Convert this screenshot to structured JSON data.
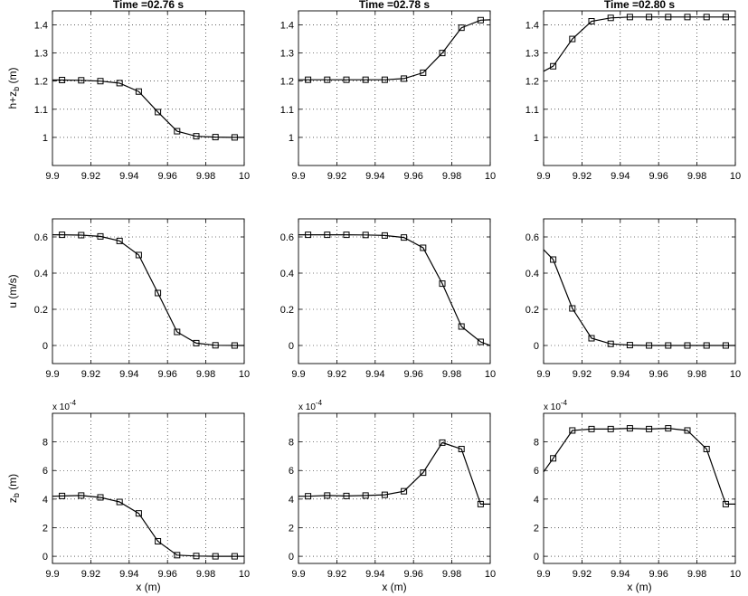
{
  "chart_data": [
    {
      "type": "line",
      "row": 0,
      "col": 0,
      "title": "Time =02.76 s",
      "ylabel": "h+z_b (m)",
      "xlabel": "",
      "xlim": [
        9.9,
        10
      ],
      "ylim": [
        0.9,
        1.45
      ],
      "xticks": [
        9.9,
        9.92,
        9.94,
        9.96,
        9.98,
        10
      ],
      "xtick_labels": [
        "9.9",
        "9.92",
        "9.94",
        "9.96",
        "9.98",
        "10"
      ],
      "yticks": [
        1,
        1.1,
        1.2,
        1.3,
        1.4
      ],
      "ytick_labels": [
        "1",
        "1.1",
        "1.2",
        "1.3",
        "1.4"
      ],
      "grid": true,
      "line_x": [
        9.9,
        9.905,
        9.915,
        9.925,
        9.935,
        9.945,
        9.955,
        9.965,
        9.975,
        9.985,
        9.995,
        10
      ],
      "line_y": [
        1.204,
        1.204,
        1.203,
        1.2,
        1.193,
        1.163,
        1.09,
        1.022,
        1.004,
        1.001,
        1.0,
        1.0
      ],
      "markers_x": [
        9.905,
        9.915,
        9.925,
        9.935,
        9.945,
        9.955,
        9.965,
        9.975,
        9.985,
        9.995
      ],
      "markers_y": [
        1.204,
        1.203,
        1.2,
        1.193,
        1.163,
        1.09,
        1.022,
        1.004,
        1.001,
        1.0
      ]
    },
    {
      "type": "line",
      "row": 0,
      "col": 1,
      "title": "Time =02.78 s",
      "ylabel": "",
      "xlabel": "",
      "xlim": [
        9.9,
        10
      ],
      "ylim": [
        0.9,
        1.45
      ],
      "xticks": [
        9.9,
        9.92,
        9.94,
        9.96,
        9.98,
        10
      ],
      "xtick_labels": [
        "9.9",
        "9.92",
        "9.94",
        "9.96",
        "9.98",
        "10"
      ],
      "yticks": [
        1,
        1.1,
        1.2,
        1.3,
        1.4
      ],
      "ytick_labels": [
        "1",
        "1.1",
        "1.2",
        "1.3",
        "1.4"
      ],
      "grid": true,
      "line_x": [
        9.9,
        9.905,
        9.915,
        9.925,
        9.935,
        9.945,
        9.955,
        9.965,
        9.975,
        9.985,
        9.995,
        10
      ],
      "line_y": [
        1.205,
        1.205,
        1.205,
        1.205,
        1.205,
        1.205,
        1.209,
        1.23,
        1.3,
        1.39,
        1.417,
        1.418
      ],
      "markers_x": [
        9.905,
        9.915,
        9.925,
        9.935,
        9.945,
        9.955,
        9.965,
        9.975,
        9.985,
        9.995
      ],
      "markers_y": [
        1.205,
        1.205,
        1.205,
        1.205,
        1.205,
        1.209,
        1.23,
        1.3,
        1.39,
        1.417
      ]
    },
    {
      "type": "line",
      "row": 0,
      "col": 2,
      "title": "Time =02.80 s",
      "ylabel": "",
      "xlabel": "",
      "xlim": [
        9.9,
        10
      ],
      "ylim": [
        0.9,
        1.45
      ],
      "xticks": [
        9.9,
        9.92,
        9.94,
        9.96,
        9.98,
        10
      ],
      "xtick_labels": [
        "9.9",
        "9.92",
        "9.94",
        "9.96",
        "9.98",
        "10"
      ],
      "yticks": [
        1,
        1.1,
        1.2,
        1.3,
        1.4
      ],
      "ytick_labels": [
        "1",
        "1.1",
        "1.2",
        "1.3",
        "1.4"
      ],
      "grid": true,
      "line_x": [
        9.9,
        9.905,
        9.915,
        9.925,
        9.935,
        9.945,
        9.955,
        9.965,
        9.975,
        9.985,
        9.995,
        10
      ],
      "line_y": [
        1.235,
        1.253,
        1.35,
        1.413,
        1.425,
        1.428,
        1.428,
        1.428,
        1.428,
        1.428,
        1.428,
        1.428
      ],
      "markers_x": [
        9.905,
        9.915,
        9.925,
        9.935,
        9.945,
        9.955,
        9.965,
        9.975,
        9.985,
        9.995
      ],
      "markers_y": [
        1.253,
        1.35,
        1.413,
        1.425,
        1.428,
        1.428,
        1.428,
        1.428,
        1.428,
        1.428
      ]
    },
    {
      "type": "line",
      "row": 1,
      "col": 0,
      "title": "",
      "ylabel": "u (m/s)",
      "xlabel": "",
      "xlim": [
        9.9,
        10
      ],
      "ylim": [
        -0.1,
        0.7
      ],
      "xticks": [
        9.9,
        9.92,
        9.94,
        9.96,
        9.98,
        10
      ],
      "xtick_labels": [
        "9.9",
        "9.92",
        "9.94",
        "9.96",
        "9.98",
        "10"
      ],
      "yticks": [
        0,
        0.2,
        0.4,
        0.6
      ],
      "ytick_labels": [
        "0",
        "0.2",
        "0.4",
        "0.6"
      ],
      "grid": true,
      "line_x": [
        9.9,
        9.905,
        9.915,
        9.925,
        9.935,
        9.945,
        9.955,
        9.965,
        9.975,
        9.985,
        9.995,
        10
      ],
      "line_y": [
        0.612,
        0.612,
        0.61,
        0.603,
        0.578,
        0.5,
        0.29,
        0.075,
        0.013,
        0.001,
        0.0,
        0.0
      ],
      "markers_x": [
        9.905,
        9.915,
        9.925,
        9.935,
        9.945,
        9.955,
        9.965,
        9.975,
        9.985,
        9.995
      ],
      "markers_y": [
        0.612,
        0.61,
        0.603,
        0.578,
        0.5,
        0.29,
        0.075,
        0.013,
        0.001,
        0.0
      ]
    },
    {
      "type": "line",
      "row": 1,
      "col": 1,
      "title": "",
      "ylabel": "",
      "xlabel": "",
      "xlim": [
        9.9,
        10
      ],
      "ylim": [
        -0.1,
        0.7
      ],
      "xticks": [
        9.9,
        9.92,
        9.94,
        9.96,
        9.98,
        10
      ],
      "xtick_labels": [
        "9.9",
        "9.92",
        "9.94",
        "9.96",
        "9.98",
        "10"
      ],
      "yticks": [
        0,
        0.2,
        0.4,
        0.6
      ],
      "ytick_labels": [
        "0",
        "0.2",
        "0.4",
        "0.6"
      ],
      "grid": true,
      "line_x": [
        9.9,
        9.905,
        9.915,
        9.925,
        9.935,
        9.945,
        9.955,
        9.965,
        9.975,
        9.985,
        9.995,
        10
      ],
      "line_y": [
        0.612,
        0.612,
        0.612,
        0.612,
        0.611,
        0.608,
        0.597,
        0.54,
        0.342,
        0.105,
        0.02,
        0.0
      ],
      "markers_x": [
        9.905,
        9.915,
        9.925,
        9.935,
        9.945,
        9.955,
        9.965,
        9.975,
        9.985,
        9.995
      ],
      "markers_y": [
        0.612,
        0.612,
        0.612,
        0.611,
        0.608,
        0.597,
        0.54,
        0.342,
        0.105,
        0.02
      ]
    },
    {
      "type": "line",
      "row": 1,
      "col": 2,
      "title": "",
      "ylabel": "",
      "xlabel": "",
      "xlim": [
        9.9,
        10
      ],
      "ylim": [
        -0.1,
        0.7
      ],
      "xticks": [
        9.9,
        9.92,
        9.94,
        9.96,
        9.98,
        10
      ],
      "xtick_labels": [
        "9.9",
        "9.92",
        "9.94",
        "9.96",
        "9.98",
        "10"
      ],
      "yticks": [
        0,
        0.2,
        0.4,
        0.6
      ],
      "ytick_labels": [
        "0",
        "0.2",
        "0.4",
        "0.6"
      ],
      "grid": true,
      "line_x": [
        9.9,
        9.905,
        9.915,
        9.925,
        9.935,
        9.945,
        9.955,
        9.965,
        9.975,
        9.985,
        9.995,
        10
      ],
      "line_y": [
        0.53,
        0.475,
        0.205,
        0.04,
        0.009,
        0.002,
        0.0,
        0.0,
        0.0,
        0.0,
        0.0,
        0.0
      ],
      "markers_x": [
        9.905,
        9.915,
        9.925,
        9.935,
        9.945,
        9.955,
        9.965,
        9.975,
        9.985,
        9.995
      ],
      "markers_y": [
        0.475,
        0.205,
        0.04,
        0.009,
        0.002,
        0.0,
        0.0,
        0.0,
        0.0,
        0.0
      ]
    },
    {
      "type": "line",
      "row": 2,
      "col": 0,
      "title": "",
      "ylabel": "z_b (m)",
      "xlabel": "x (m)",
      "scale_label": "x 10^-4",
      "xlim": [
        9.9,
        10
      ],
      "ylim": [
        -0.5,
        10
      ],
      "xticks": [
        9.9,
        9.92,
        9.94,
        9.96,
        9.98,
        10
      ],
      "xtick_labels": [
        "9.9",
        "9.92",
        "9.94",
        "9.96",
        "9.98",
        "10"
      ],
      "yticks": [
        0,
        2,
        4,
        6,
        8
      ],
      "ytick_labels": [
        "0",
        "2",
        "4",
        "6",
        "8"
      ],
      "grid": true,
      "line_x": [
        9.9,
        9.905,
        9.915,
        9.925,
        9.935,
        9.945,
        9.955,
        9.965,
        9.975,
        9.985,
        9.995,
        10
      ],
      "line_y": [
        4.2,
        4.22,
        4.25,
        4.12,
        3.8,
        3.0,
        1.05,
        0.08,
        0.02,
        0.0,
        0.0,
        0.0
      ],
      "markers_x": [
        9.905,
        9.915,
        9.925,
        9.935,
        9.945,
        9.955,
        9.965,
        9.975,
        9.985,
        9.995
      ],
      "markers_y": [
        4.22,
        4.25,
        4.12,
        3.8,
        3.0,
        1.05,
        0.08,
        0.02,
        0.0,
        0.0
      ]
    },
    {
      "type": "line",
      "row": 2,
      "col": 1,
      "title": "",
      "ylabel": "",
      "xlabel": "x (m)",
      "scale_label": "x 10^-4",
      "xlim": [
        9.9,
        10
      ],
      "ylim": [
        -0.5,
        10
      ],
      "xticks": [
        9.9,
        9.92,
        9.94,
        9.96,
        9.98,
        10
      ],
      "xtick_labels": [
        "9.9",
        "9.92",
        "9.94",
        "9.96",
        "9.98",
        "10"
      ],
      "yticks": [
        0,
        2,
        4,
        6,
        8
      ],
      "ytick_labels": [
        "0",
        "2",
        "4",
        "6",
        "8"
      ],
      "grid": true,
      "line_x": [
        9.9,
        9.905,
        9.915,
        9.925,
        9.935,
        9.945,
        9.955,
        9.965,
        9.975,
        9.985,
        9.995,
        10
      ],
      "line_y": [
        4.2,
        4.2,
        4.25,
        4.22,
        4.25,
        4.3,
        4.55,
        5.85,
        7.95,
        7.5,
        3.65,
        3.65
      ],
      "markers_x": [
        9.905,
        9.915,
        9.925,
        9.935,
        9.945,
        9.955,
        9.965,
        9.975,
        9.985,
        9.995
      ],
      "markers_y": [
        4.2,
        4.25,
        4.22,
        4.25,
        4.3,
        4.55,
        5.85,
        7.95,
        7.5,
        3.65
      ]
    },
    {
      "type": "line",
      "row": 2,
      "col": 2,
      "title": "",
      "ylabel": "",
      "xlabel": "x (m)",
      "scale_label": "x 10^-4",
      "xlim": [
        9.9,
        10
      ],
      "ylim": [
        -0.5,
        10
      ],
      "xticks": [
        9.9,
        9.92,
        9.94,
        9.96,
        9.98,
        10
      ],
      "xtick_labels": [
        "9.9",
        "9.92",
        "9.94",
        "9.96",
        "9.98",
        "10"
      ],
      "yticks": [
        0,
        2,
        4,
        6,
        8
      ],
      "ytick_labels": [
        "0",
        "2",
        "4",
        "6",
        "8"
      ],
      "grid": true,
      "line_x": [
        9.9,
        9.905,
        9.915,
        9.925,
        9.935,
        9.945,
        9.955,
        9.965,
        9.975,
        9.985,
        9.995,
        10
      ],
      "line_y": [
        5.9,
        6.85,
        8.8,
        8.9,
        8.9,
        8.95,
        8.9,
        8.95,
        8.8,
        7.5,
        3.65,
        3.65
      ],
      "markers_x": [
        9.905,
        9.915,
        9.925,
        9.935,
        9.945,
        9.955,
        9.965,
        9.975,
        9.985,
        9.995
      ],
      "markers_y": [
        6.85,
        8.8,
        8.9,
        8.9,
        8.95,
        8.9,
        8.95,
        8.8,
        7.5,
        3.65
      ]
    }
  ]
}
